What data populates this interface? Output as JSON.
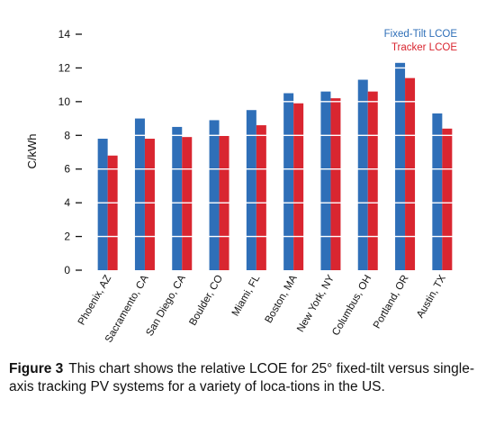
{
  "chart_data": {
    "type": "bar",
    "categories": [
      "Phoenix, AZ",
      "Sacramento, CA",
      "San Diego, CA",
      "Boulder, CO",
      "Miami, FL",
      "Boston, MA",
      "New York, NY",
      "Columbus, OH",
      "Portland, OR",
      "Austin, TX"
    ],
    "series": [
      {
        "name": "Fixed-Tilt LCOE",
        "color": "#2f6fb8",
        "values": [
          7.8,
          9.0,
          8.5,
          8.9,
          9.5,
          10.5,
          10.6,
          11.3,
          12.3,
          9.3
        ]
      },
      {
        "name": "Tracker LCOE",
        "color": "#d92630",
        "values": [
          6.8,
          7.8,
          7.9,
          8.0,
          8.6,
          9.9,
          10.2,
          10.6,
          11.4,
          8.4
        ]
      }
    ],
    "ylabel": "C/kWh",
    "ylim": [
      0,
      14
    ],
    "yticks": [
      0,
      2,
      4,
      6,
      8,
      10,
      12,
      14
    ],
    "grid": "white horizontal lines across bars at each y tick",
    "legend_position": "top-right"
  },
  "caption": {
    "label": "Figure 3",
    "text": "This chart shows the relative LCOE for 25° fixed-tilt versus single-axis tracking PV systems for a variety of loca-tions in the US."
  }
}
